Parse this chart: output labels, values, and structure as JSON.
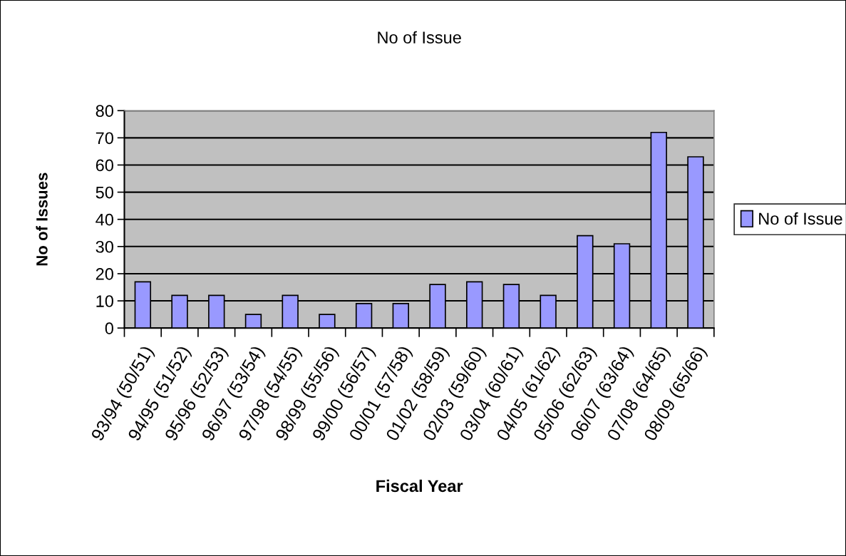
{
  "chart_data": {
    "type": "bar",
    "title": "No of Issue",
    "xlabel": "Fiscal Year",
    "ylabel": "No of Issues",
    "categories": [
      "93/94 (50/51)",
      "94/95 (51/52)",
      "95/96 (52/53)",
      "96/97 (53/54)",
      "97/98 (54/55)",
      "98/99 (55/56)",
      "99/00 (56/57)",
      "00/01 (57/58)",
      "01/02 (58/59)",
      "02/03 (59/60)",
      "03/04 (60/61)",
      "04/05 (61/62)",
      "05/06 (62/63)",
      "06/07 (63/64)",
      "07/08 (64/65)",
      "08/09 (65/66)"
    ],
    "series": [
      {
        "name": "No of Issue",
        "color": "#9999ff",
        "values": [
          17,
          12,
          12,
          5,
          12,
          5,
          9,
          9,
          16,
          17,
          16,
          12,
          34,
          31,
          72,
          63
        ]
      }
    ],
    "ylim": [
      0,
      80
    ],
    "yticks": [
      0,
      10,
      20,
      30,
      40,
      50,
      60,
      70,
      80
    ],
    "grid": "y",
    "legend": "right"
  }
}
